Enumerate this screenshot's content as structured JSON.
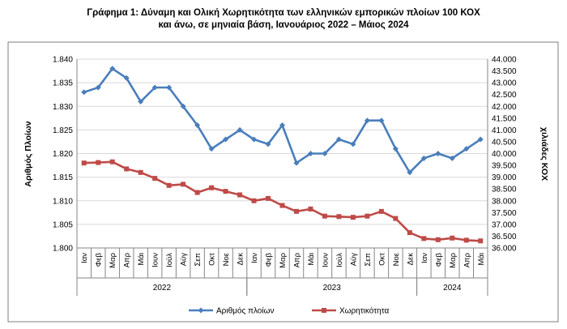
{
  "chart_data": {
    "type": "line",
    "title_line1": "Γράφημα 1: Δύναμη και Ολική Χωρητικότητα των ελληνικών εμπορικών πλοίων 100 ΚΟΧ",
    "title_line2": "και άνω, σε μηνιαία βάση, Ιανουάριος 2022 – Μάιος 2024",
    "ylabel_left": "Αριθμός Πλοίων",
    "ylabel_right": "χιλιάδες ΚΟΧ",
    "categories": [
      "Ιαν",
      "Φεβ",
      "Μαρ",
      "Απρ",
      "Μάι",
      "Ιουν",
      "Ιούλ",
      "Αύγ",
      "Σεπ",
      "Οκτ",
      "Νοε",
      "Δεκ",
      "Ιαν",
      "Φεβ",
      "Μαρ",
      "Απρ",
      "Μάι",
      "Ιουν",
      "Ιούλ",
      "Αύγ",
      "Σεπ",
      "Οκτ",
      "Νοε",
      "Δεκ",
      "Ιαν",
      "Φεβ",
      "Μαρ",
      "Απρ",
      "Μάι"
    ],
    "years": [
      {
        "label": "2022",
        "start": 0,
        "count": 12
      },
      {
        "label": "2023",
        "start": 12,
        "count": 12
      },
      {
        "label": "2024",
        "start": 24,
        "count": 5
      }
    ],
    "y_left": {
      "min": 1.8,
      "max": 1.84,
      "step": 0.005,
      "ticks": [
        "1.800",
        "1.805",
        "1.810",
        "1.815",
        "1.820",
        "1.825",
        "1.830",
        "1.835",
        "1.840"
      ]
    },
    "y_right": {
      "min": 36000,
      "max": 44000,
      "step": 500,
      "ticks": [
        "36.000",
        "36.500",
        "37.000",
        "37.500",
        "38.000",
        "38.500",
        "39.000",
        "39.500",
        "40.000",
        "40.500",
        "41.000",
        "41.500",
        "42.000",
        "42.500",
        "43.000",
        "43.500",
        "44.000"
      ]
    },
    "grid": true,
    "legend_position": "bottom",
    "series": [
      {
        "name": "Αριθμός πλοίων",
        "axis": "left",
        "color": "#4a7ebb",
        "marker": "diamond",
        "values": [
          1.833,
          1.834,
          1.838,
          1.836,
          1.831,
          1.834,
          1.834,
          1.83,
          1.826,
          1.821,
          1.823,
          1.825,
          1.823,
          1.822,
          1.826,
          1.818,
          1.82,
          1.82,
          1.823,
          1.822,
          1.827,
          1.827,
          1.821,
          1.816,
          1.819,
          1.82,
          1.819,
          1.821,
          1.823
        ]
      },
      {
        "name": "Χωρητικότητα",
        "axis": "right",
        "color": "#be4b48",
        "marker": "square",
        "values": [
          39600,
          39620,
          39650,
          39350,
          39200,
          38950,
          38650,
          38700,
          38350,
          38550,
          38400,
          38250,
          38000,
          38100,
          37800,
          37550,
          37650,
          37350,
          37330,
          37300,
          37350,
          37550,
          37250,
          36650,
          36400,
          36350,
          36420,
          36330,
          36300
        ]
      }
    ]
  }
}
